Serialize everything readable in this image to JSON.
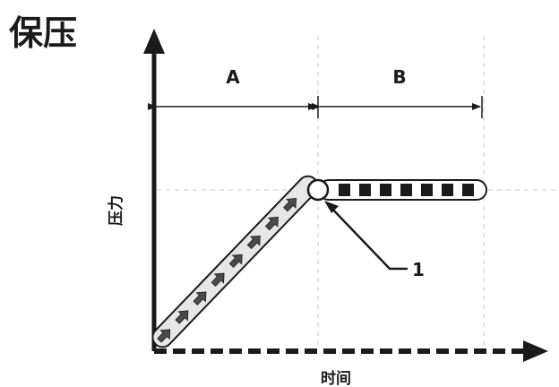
{
  "title": "保压",
  "phase_a_label": "A",
  "phase_b_label": "B",
  "y_axis_label": "压力",
  "x_axis_label": "时间",
  "callout_label": "1",
  "colors": {
    "ink": "#1a1a1a",
    "guide": "#c8c8c8",
    "tube_fill": "#e6e6e6"
  },
  "icons": {
    "ramp_arrows": "right-arrow-icon",
    "hold_blocks": "square-icon"
  }
}
